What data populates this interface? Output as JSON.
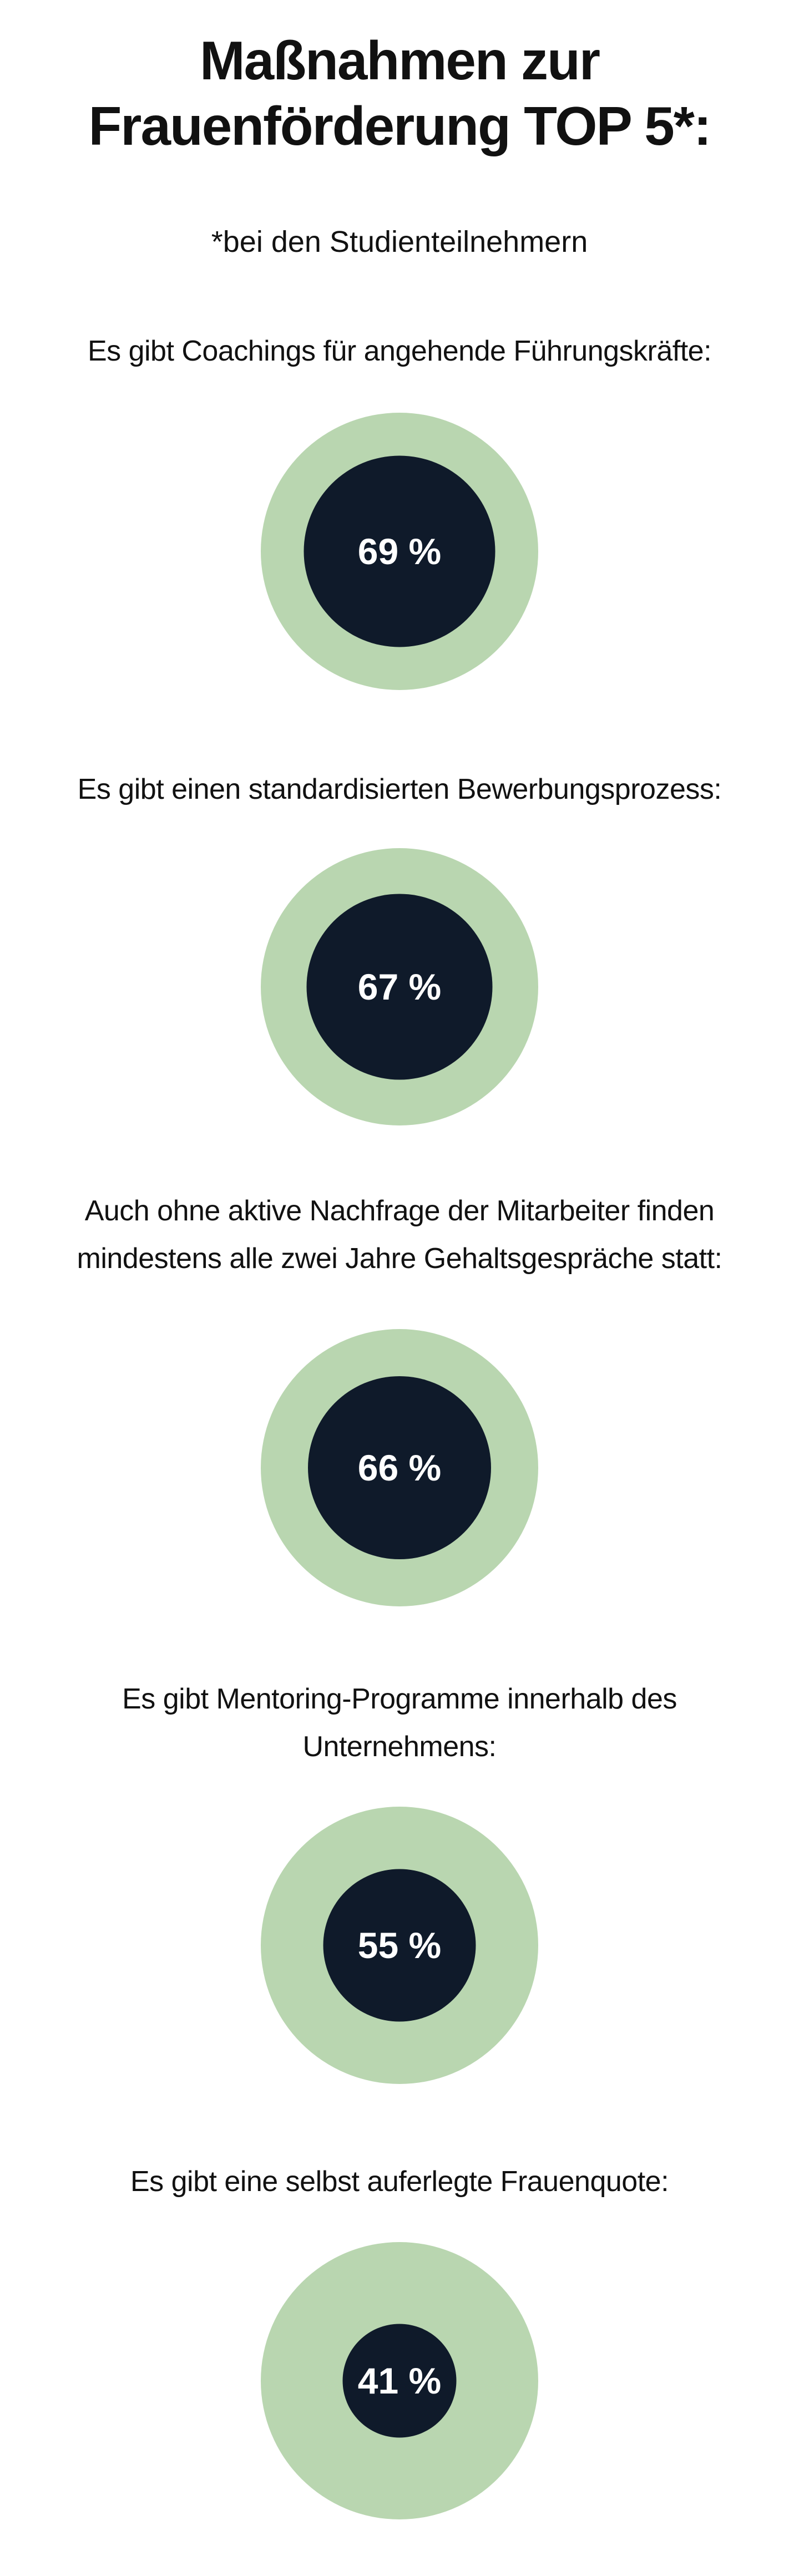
{
  "chart_data": {
    "type": "radial-circle",
    "title": "Maßnahmen zur Frauenförderung TOP 5*:",
    "subtitle": "*bei den Studienteilnehmern",
    "categories": [
      "Es gibt Coachings für angehende Führungskräfte:",
      "Es gibt einen standardisierten Bewerbungsprozess:",
      "Auch ohne aktive Nachfrage der Mitarbeiter finden mindestens alle zwei Jahre Gehaltsgespräche statt:",
      "Es gibt Mentoring-Programme innerhalb des Unternehmens:",
      "Es gibt eine selbst auferlegte Frauenquote:"
    ],
    "values": [
      69,
      67,
      66,
      55,
      41
    ],
    "value_labels": [
      "69 %",
      "67 %",
      "66 %",
      "55 %",
      "41 %"
    ],
    "rlim": [
      0,
      100
    ],
    "background_color": "#b9d6b0",
    "color": "#0f1a2a"
  }
}
